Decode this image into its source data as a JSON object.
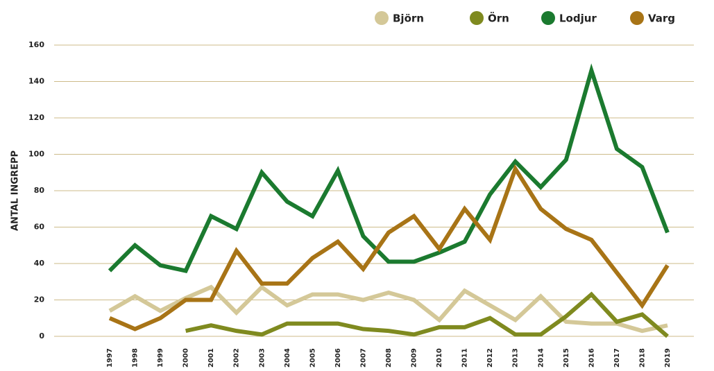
{
  "chart_data": {
    "type": "line",
    "ylabel": "ANTAL INGREPP",
    "categories": [
      "1997",
      "1998",
      "1999",
      "2000",
      "2001",
      "2002",
      "2003",
      "2004",
      "2005",
      "2006",
      "2007",
      "2008",
      "2009",
      "2010",
      "2011",
      "2012",
      "2013",
      "2014",
      "2015",
      "2016",
      "2017",
      "2018",
      "2019"
    ],
    "series": [
      {
        "name": "Björn",
        "color": "#d4c898",
        "values": [
          14,
          22,
          14,
          21,
          27,
          13,
          27,
          17,
          23,
          23,
          20,
          24,
          20,
          9,
          25,
          17,
          9,
          22,
          8,
          7,
          7,
          3,
          6
        ]
      },
      {
        "name": "Örn",
        "color": "#7f8a1f",
        "values": [
          null,
          null,
          null,
          3,
          6,
          3,
          1,
          7,
          7,
          7,
          4,
          3,
          1,
          5,
          5,
          10,
          1,
          1,
          11,
          23,
          8,
          12,
          0
        ]
      },
      {
        "name": "Lodjur",
        "color": "#1b7a2f",
        "values": [
          36,
          50,
          39,
          36,
          66,
          59,
          90,
          74,
          66,
          91,
          55,
          41,
          41,
          46,
          52,
          78,
          96,
          82,
          97,
          146,
          103,
          93,
          57
        ]
      },
      {
        "name": "Varg",
        "color": "#a87416",
        "values": [
          10,
          4,
          10,
          20,
          20,
          47,
          29,
          29,
          43,
          52,
          37,
          57,
          66,
          48,
          70,
          53,
          92,
          70,
          59,
          53,
          35,
          17,
          39
        ]
      }
    ],
    "ylim": [
      0,
      160
    ],
    "yticks": [
      0,
      20,
      40,
      60,
      80,
      100,
      120,
      140,
      160
    ],
    "grid": true,
    "legend": "top-right"
  }
}
